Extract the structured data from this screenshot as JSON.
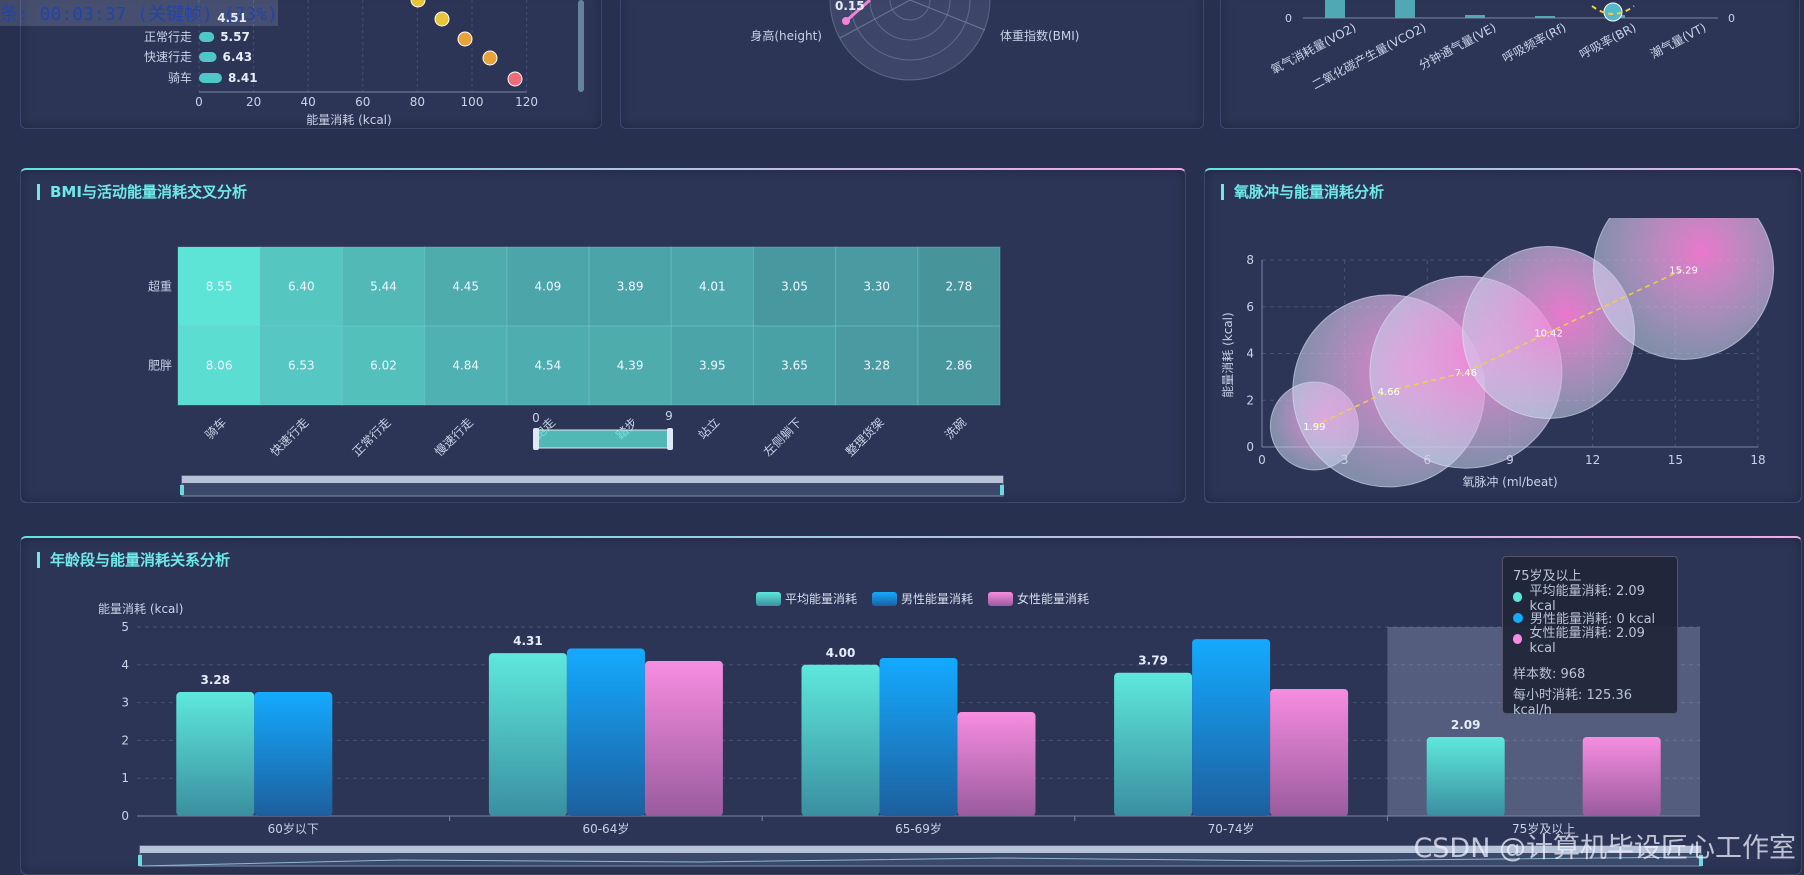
{
  "overlay_text": "条: 00:03:37 (关键帧) (73%)",
  "watermark": "CSDN @计算机毕设匠心工作室",
  "top_left": {
    "labels": [
      "正常行走",
      "快速行走",
      "骑车"
    ],
    "values": [
      "5.57",
      "6.43",
      "8.41"
    ],
    "partial_value": "4.51",
    "x_ticks": [
      "0",
      "20",
      "40",
      "60",
      "80",
      "100",
      "120"
    ],
    "xlabel": "能量消耗 (kcal)",
    "dot_colors": [
      "#e8c43a",
      "#e8c43a",
      "#e8a23a",
      "#e8a23a",
      "#ee6b7a"
    ]
  },
  "top_mid": {
    "label_left": "身高(height)",
    "label_right": "体重指数(BMI)",
    "value": "0.15"
  },
  "top_right": {
    "categories": [
      "氧气消耗量(VO2)",
      "二氧化碳产生量(VCO2)",
      "分钟通气量(VE)",
      "呼吸频率(Rf)",
      "呼吸率(BR)",
      "潮气量(VT)"
    ],
    "y0": "0",
    "y_right": "0",
    "bar_color": "#4fa8b4"
  },
  "heatmap": {
    "title": "BMI与活动能量消耗交叉分析",
    "rows": [
      "超重",
      "肥胖"
    ],
    "cols": [
      "骑车",
      "快速行走",
      "正常行走",
      "慢速行走",
      "跑走",
      "踏步",
      "站立",
      "左侧躺下",
      "整理货架",
      "洗碗"
    ],
    "values": [
      [
        8.55,
        6.4,
        5.44,
        4.45,
        4.09,
        3.89,
        4.01,
        3.05,
        3.3,
        2.78
      ],
      [
        8.06,
        6.53,
        6.02,
        4.84,
        4.54,
        4.39,
        3.95,
        3.65,
        3.28,
        2.86
      ]
    ],
    "visual_map": {
      "min": "0",
      "max": "9"
    }
  },
  "bubble": {
    "title": "氧脉冲与能量消耗分析",
    "xlabel": "氧脉冲 (ml/beat)",
    "ylabel": "能量消耗 (kcal)",
    "x_ticks": [
      "0",
      "3",
      "6",
      "9",
      "12",
      "15",
      "18"
    ],
    "y_ticks": [
      "0",
      "2",
      "4",
      "6",
      "8"
    ],
    "xlim": [
      0,
      18
    ],
    "ylim": [
      0,
      8
    ],
    "points": [
      {
        "x": 1.9,
        "y": 0.9,
        "label": "1.99",
        "r": 44
      },
      {
        "x": 4.6,
        "y": 2.4,
        "label": "4.66",
        "r": 96
      },
      {
        "x": 7.4,
        "y": 3.2,
        "label": "7.46",
        "r": 96
      },
      {
        "x": 10.4,
        "y": 4.9,
        "label": "10.42",
        "r": 86
      },
      {
        "x": 15.3,
        "y": 7.6,
        "label": "15.29",
        "r": 90
      }
    ]
  },
  "age_chart": {
    "title": "年龄段与能量消耗关系分析",
    "ylabel": "能量消耗 (kcal)",
    "categories": [
      "60岁以下",
      "60-64岁",
      "65-69岁",
      "70-74岁",
      "75岁及以上"
    ],
    "y_ticks": [
      "0",
      "1",
      "2",
      "3",
      "4",
      "5"
    ],
    "ylim": [
      0,
      5
    ],
    "series": [
      {
        "name": "平均能量消耗",
        "values": [
          3.28,
          4.31,
          4.0,
          3.79,
          2.09
        ],
        "labels": [
          "3.28",
          "4.31",
          "4.00",
          "3.79",
          "2.09"
        ],
        "color_top": "#5ee8dc",
        "color_bot": "#3a8fa0"
      },
      {
        "name": "男性能量消耗",
        "values": [
          3.28,
          4.43,
          4.18,
          4.68,
          0
        ],
        "color_top": "#14aaff",
        "color_bot": "#1d5f9e"
      },
      {
        "name": "女性能量消耗",
        "values": [
          0,
          4.1,
          2.75,
          3.36,
          2.09
        ],
        "color_top": "#f78de0",
        "color_bot": "#9a5b9e"
      }
    ],
    "tooltip": {
      "category": "75岁及以上",
      "rows": [
        {
          "label": "平均能量消耗: 2.09 kcal",
          "color": "#5ee8dc"
        },
        {
          "label": "男性能量消耗: 0 kcal",
          "color": "#14aaff"
        },
        {
          "label": "女性能量消耗: 2.09 kcal",
          "color": "#f78de0"
        }
      ],
      "samples": "样本数: 968",
      "rate": "每小时消耗: 125.36 kcal/h"
    }
  }
}
